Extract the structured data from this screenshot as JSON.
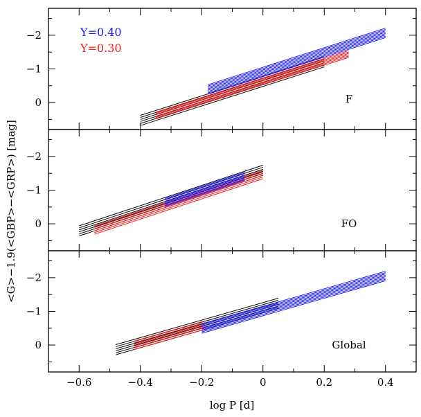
{
  "chart_data": {
    "type": "line",
    "xlabel": "log P [d]",
    "ylabel": "<G>−1.9(<GBP>−<GRP>) [mag]",
    "xlim": [
      -0.7,
      0.5
    ],
    "x_ticks": [
      -0.6,
      -0.4,
      -0.2,
      0.0,
      0.2,
      0.4
    ],
    "x_tick_labels": [
      "−0.6",
      "−0.4",
      "−0.2",
      "0",
      "0.2",
      "0.4"
    ],
    "legend": {
      "placement": "top-left",
      "entries": [
        {
          "label": "Y=0.40",
          "color": "#1a1aff"
        },
        {
          "label": "Y=0.30",
          "color": "#ff1a1a"
        }
      ]
    },
    "colors": {
      "Y=0.40": "#1a1aff",
      "Y=0.30": "#ff1a1a",
      "reference": "#000000"
    },
    "panels": [
      {
        "label": "F",
        "ylim": [
          0.8,
          -2.8
        ],
        "y_ticks": [
          0,
          -1,
          -2
        ],
        "y_tick_labels": [
          "0",
          "−1",
          "−2"
        ],
        "series": [
          {
            "color": "black",
            "x": [
              -0.4,
              0.2
            ],
            "intercepts": [
              -0.78,
              -0.72,
              -0.66,
              -0.6,
              -0.54,
              -0.48
            ],
            "slope": -2.9
          },
          {
            "color": "red",
            "x": [
              -0.35,
              0.28
            ],
            "intercepts": [
              -0.73,
              -0.69,
              -0.65,
              -0.61,
              -0.57,
              -0.53
            ],
            "slope": -2.9
          },
          {
            "color": "blue",
            "x": [
              -0.18,
              0.4
            ],
            "intercepts": [
              -1.05,
              -1.01,
              -0.97,
              -0.93,
              -0.89,
              -0.85,
              -0.81,
              -0.77
            ],
            "slope": -2.9
          }
        ]
      },
      {
        "label": "FO",
        "ylim": [
          0.8,
          -2.8
        ],
        "y_ticks": [
          0,
          -1,
          -2
        ],
        "y_tick_labels": [
          "0",
          "−1",
          "−2"
        ],
        "series": [
          {
            "color": "black",
            "x": [
              -0.6,
              0.0
            ],
            "intercepts": [
              -1.74,
              -1.68,
              -1.62,
              -1.56,
              -1.5,
              -1.44
            ],
            "slope": -3.0
          },
          {
            "color": "red",
            "x": [
              -0.55,
              0.0
            ],
            "intercepts": [
              -1.59,
              -1.54,
              -1.49,
              -1.44,
              -1.39,
              -1.34
            ],
            "slope": -3.0
          },
          {
            "color": "blue",
            "x": [
              -0.32,
              -0.06
            ],
            "intercepts": [
              -1.71,
              -1.67,
              -1.63,
              -1.59,
              -1.55,
              -1.51,
              -1.47
            ],
            "slope": -3.0
          }
        ]
      },
      {
        "label": "Global",
        "ylim": [
          0.8,
          -2.8
        ],
        "y_ticks": [
          0,
          -1,
          -2
        ],
        "y_tick_labels": [
          "0",
          "−1",
          "−2"
        ],
        "series": [
          {
            "color": "black",
            "x": [
              -0.48,
              0.05
            ],
            "intercepts": [
              -1.26,
              -1.2,
              -1.14,
              -1.08,
              -1.02,
              -0.96
            ],
            "slope": -2.6
          },
          {
            "color": "red",
            "x": [
              -0.42,
              -0.19
            ],
            "intercepts": [
              -1.21,
              -1.16,
              -1.11,
              -1.06,
              -1.01,
              -0.96
            ],
            "slope": -2.6
          },
          {
            "color": "blue",
            "x": [
              -0.2,
              0.4
            ],
            "intercepts": [
              -1.15,
              -1.11,
              -1.07,
              -1.03,
              -0.99,
              -0.95,
              -0.91,
              -0.87
            ],
            "slope": -2.6
          }
        ]
      }
    ]
  }
}
